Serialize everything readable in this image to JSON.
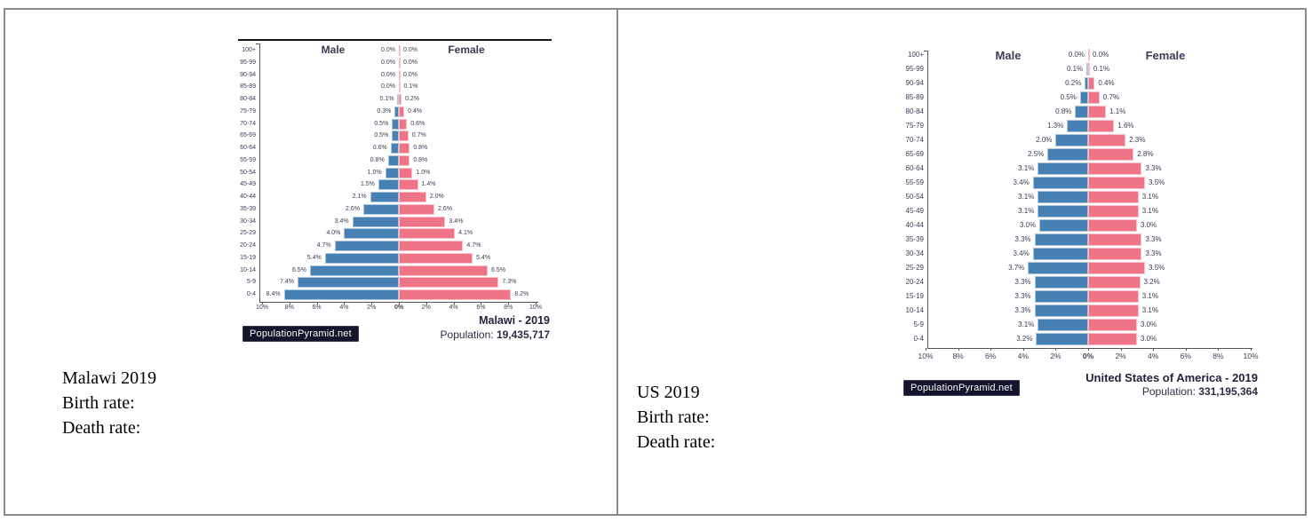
{
  "notes": {
    "malawi": [
      "Malawi 2019",
      "Birth rate:",
      "Death rate:"
    ],
    "us": [
      "US 2019",
      "Birth rate:",
      "Death rate:"
    ]
  },
  "chart_data": [
    {
      "type": "bar",
      "variant": "population-pyramid",
      "title": "Malawi - 2019",
      "population_label": "Population:",
      "population_value": "19,435,717",
      "badge": "PopulationPyramid.net",
      "legend": {
        "male": "Male",
        "female": "Female"
      },
      "legend_position": "top",
      "grid": false,
      "xlim_percent": 10,
      "x_ticks": [
        "10%",
        "8%",
        "6%",
        "4%",
        "2%",
        "0%",
        "2%",
        "4%",
        "6%",
        "8%",
        "10%"
      ],
      "age_groups": [
        "100+",
        "95-99",
        "90-94",
        "85-89",
        "80-84",
        "75-79",
        "70-74",
        "65-69",
        "60-64",
        "55-59",
        "50-54",
        "45-49",
        "40-44",
        "35-39",
        "30-34",
        "25-29",
        "20-24",
        "15-19",
        "10-14",
        "5-9",
        "0-4"
      ],
      "series": [
        {
          "name": "Male",
          "color": "#4781b4",
          "values": [
            0.0,
            0.0,
            0.0,
            0.0,
            0.1,
            0.3,
            0.5,
            0.5,
            0.6,
            0.8,
            1.0,
            1.5,
            2.1,
            2.6,
            3.4,
            4.0,
            4.7,
            5.4,
            6.5,
            7.4,
            8.4
          ]
        },
        {
          "name": "Female",
          "color": "#ef7487",
          "values": [
            0.0,
            0.0,
            0.0,
            0.1,
            0.2,
            0.4,
            0.6,
            0.7,
            0.8,
            0.8,
            1.0,
            1.4,
            2.0,
            2.6,
            3.4,
            4.1,
            4.7,
            5.4,
            6.5,
            7.3,
            8.2
          ]
        }
      ]
    },
    {
      "type": "bar",
      "variant": "population-pyramid",
      "title": "United States of America - 2019",
      "population_label": "Population:",
      "population_value": "331,195,364",
      "badge": "PopulationPyramid.net",
      "legend": {
        "male": "Male",
        "female": "Female"
      },
      "legend_position": "top",
      "grid": false,
      "xlim_percent": 10,
      "x_ticks": [
        "10%",
        "8%",
        "6%",
        "4%",
        "2%",
        "0%",
        "2%",
        "4%",
        "6%",
        "8%",
        "10%"
      ],
      "age_groups": [
        "100+",
        "95-99",
        "90-94",
        "85-89",
        "80-84",
        "75-79",
        "70-74",
        "65-69",
        "60-64",
        "55-59",
        "50-54",
        "45-49",
        "40-44",
        "35-39",
        "30-34",
        "25-29",
        "20-24",
        "15-19",
        "10-14",
        "5-9",
        "0-4"
      ],
      "series": [
        {
          "name": "Male",
          "color": "#4781b4",
          "values": [
            0.0,
            0.1,
            0.2,
            0.5,
            0.8,
            1.3,
            2.0,
            2.5,
            3.1,
            3.4,
            3.1,
            3.1,
            3.0,
            3.3,
            3.4,
            3.7,
            3.3,
            3.3,
            3.3,
            3.1,
            3.2
          ]
        },
        {
          "name": "Female",
          "color": "#ef7487",
          "values": [
            0.0,
            0.1,
            0.4,
            0.7,
            1.1,
            1.6,
            2.3,
            2.8,
            3.3,
            3.5,
            3.1,
            3.1,
            3.0,
            3.3,
            3.3,
            3.5,
            3.2,
            3.1,
            3.1,
            3.0,
            3.0
          ]
        }
      ]
    }
  ]
}
